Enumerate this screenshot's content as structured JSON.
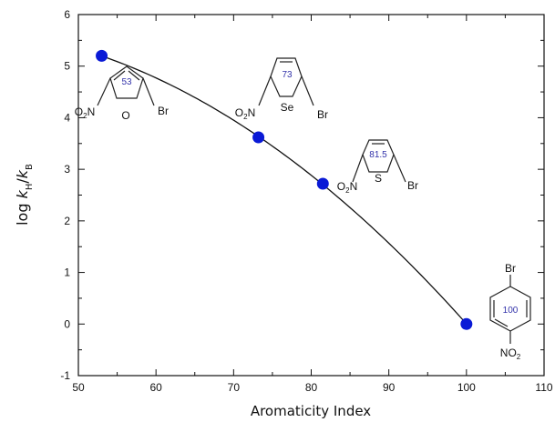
{
  "chart_data": {
    "type": "scatter",
    "xlabel": "Aromaticity Index",
    "ylabel": {
      "prefix": "log ",
      "k1": "k",
      "sub1": "H",
      "slash": "/",
      "k2": "k",
      "sub2": "B"
    },
    "xlim": [
      50,
      110
    ],
    "ylim": [
      -1,
      6
    ],
    "x_ticks": [
      50,
      60,
      70,
      80,
      90,
      100,
      110
    ],
    "y_ticks": [
      -1,
      0,
      1,
      2,
      3,
      4,
      5,
      6
    ],
    "grid": false,
    "legend": "none",
    "marker_color": "#0a1ad6",
    "points": [
      {
        "x": 53,
        "y": 5.2
      },
      {
        "x": 73.2,
        "y": 3.62
      },
      {
        "x": 81.5,
        "y": 2.72
      },
      {
        "x": 100,
        "y": 0.0
      }
    ],
    "fit_curve": "quadratic",
    "annotations": [
      {
        "id": "furan",
        "index": "53",
        "nitro_main": "O",
        "nitro_sub": "2",
        "nitro_tail": "N",
        "heteroatom": "O",
        "halogen": "Br"
      },
      {
        "id": "selenophene",
        "index": "73",
        "nitro_main": "O",
        "nitro_sub": "2",
        "nitro_tail": "N",
        "heteroatom": "Se",
        "halogen": "Br"
      },
      {
        "id": "thiophene",
        "index": "81.5",
        "nitro_main": "O",
        "nitro_sub": "2",
        "nitro_tail": "N",
        "heteroatom": "S",
        "halogen": "Br"
      },
      {
        "id": "benzene",
        "index": "100",
        "halogen": "Br",
        "nitro_bottom_main": "NO",
        "nitro_bottom_sub": "2"
      }
    ]
  }
}
